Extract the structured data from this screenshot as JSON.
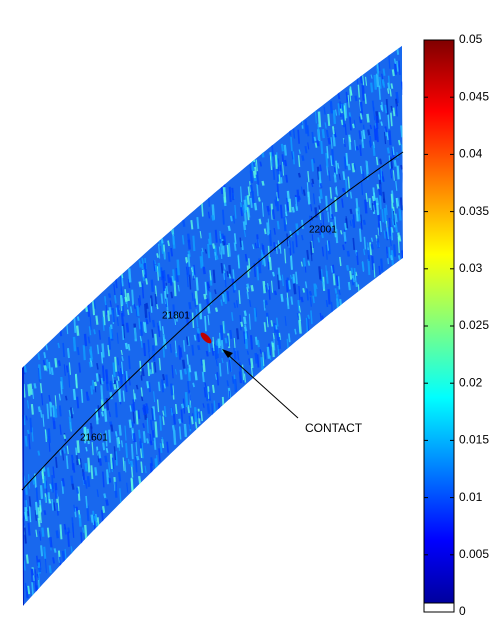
{
  "chart_data": {
    "type": "swath",
    "colormap": "jet",
    "colorbar": {
      "lim": [
        0,
        0.05
      ],
      "ticks": [
        0,
        0.005,
        0.01,
        0.015,
        0.02,
        0.025,
        0.03,
        0.035,
        0.04,
        0.045,
        0.05
      ]
    },
    "track_labels": [
      "21601",
      "21801",
      "22001"
    ],
    "annotation": "CONTACT"
  }
}
